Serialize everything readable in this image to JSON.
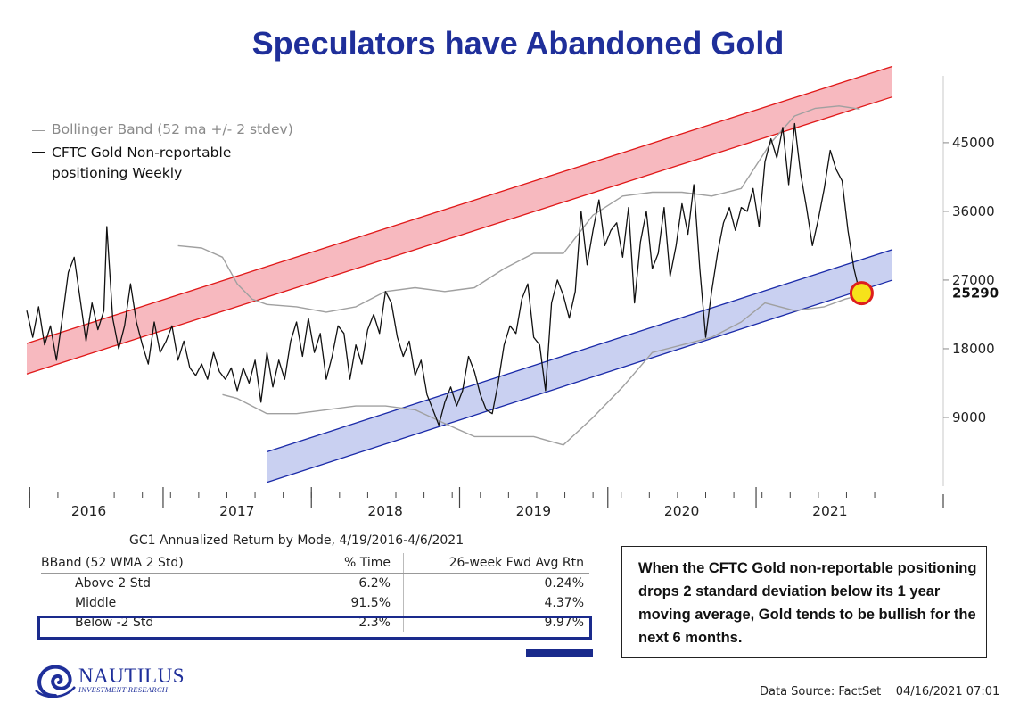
{
  "title": "Speculators have Abandoned Gold",
  "legend": {
    "band_label": "Bollinger Band (52 ma +/- 2 stdev)",
    "line_label": "CFTC Gold Non-reportable positioning Weekly"
  },
  "chart_data": {
    "type": "line",
    "title": "Speculators have Abandoned Gold",
    "x_tick_labels": [
      "2016",
      "2017",
      "2018",
      "2019",
      "2020",
      "2021"
    ],
    "y_tick_labels": [
      "45000",
      "36000",
      "27000",
      "18000",
      "9000"
    ],
    "y_ticks": [
      45000,
      36000,
      27000,
      18000,
      9000
    ],
    "ylim": [
      0,
      52000
    ],
    "xlim": [
      2015.58,
      2021.42
    ],
    "last_value_label": "25290",
    "last_value": 25290,
    "colors": {
      "line": "#111111",
      "band": "#a0a0a0",
      "upper_channel": "#e01818",
      "upper_fill": "#f7b9bf",
      "lower_channel": "#1a2aa8",
      "lower_fill": "#c9d0f1",
      "marker": "#f6e21a",
      "marker_ring": "#dd1e1e"
    },
    "series": [
      {
        "name": "CFTC Gold Non-reportable positioning Weekly",
        "points": [
          [
            2015.58,
            23000
          ],
          [
            2015.62,
            19500
          ],
          [
            2015.66,
            23500
          ],
          [
            2015.7,
            18500
          ],
          [
            2015.74,
            21000
          ],
          [
            2015.78,
            16500
          ],
          [
            2015.82,
            22000
          ],
          [
            2015.86,
            28000
          ],
          [
            2015.9,
            30000
          ],
          [
            2015.94,
            24500
          ],
          [
            2015.98,
            19000
          ],
          [
            2016.02,
            24000
          ],
          [
            2016.06,
            20500
          ],
          [
            2016.1,
            23000
          ],
          [
            2016.12,
            34000
          ],
          [
            2016.16,
            22000
          ],
          [
            2016.2,
            18000
          ],
          [
            2016.24,
            21000
          ],
          [
            2016.28,
            26500
          ],
          [
            2016.32,
            21500
          ],
          [
            2016.36,
            18500
          ],
          [
            2016.4,
            16000
          ],
          [
            2016.44,
            21500
          ],
          [
            2016.48,
            17500
          ],
          [
            2016.52,
            19000
          ],
          [
            2016.56,
            21000
          ],
          [
            2016.6,
            16500
          ],
          [
            2016.64,
            19000
          ],
          [
            2016.68,
            15500
          ],
          [
            2016.72,
            14500
          ],
          [
            2016.76,
            16000
          ],
          [
            2016.8,
            14000
          ],
          [
            2016.84,
            17500
          ],
          [
            2016.88,
            15000
          ],
          [
            2016.92,
            14000
          ],
          [
            2016.96,
            15500
          ],
          [
            2017.0,
            12500
          ],
          [
            2017.04,
            15500
          ],
          [
            2017.08,
            13500
          ],
          [
            2017.12,
            16500
          ],
          [
            2017.16,
            11000
          ],
          [
            2017.2,
            17500
          ],
          [
            2017.24,
            13000
          ],
          [
            2017.28,
            16500
          ],
          [
            2017.32,
            14000
          ],
          [
            2017.36,
            19000
          ],
          [
            2017.4,
            21500
          ],
          [
            2017.44,
            17000
          ],
          [
            2017.48,
            22000
          ],
          [
            2017.52,
            17500
          ],
          [
            2017.56,
            20000
          ],
          [
            2017.6,
            14000
          ],
          [
            2017.64,
            17000
          ],
          [
            2017.68,
            21000
          ],
          [
            2017.72,
            20000
          ],
          [
            2017.76,
            14000
          ],
          [
            2017.8,
            18500
          ],
          [
            2017.84,
            16000
          ],
          [
            2017.88,
            20500
          ],
          [
            2017.92,
            22500
          ],
          [
            2017.96,
            20000
          ],
          [
            2018.0,
            25500
          ],
          [
            2018.04,
            24000
          ],
          [
            2018.08,
            19500
          ],
          [
            2018.12,
            17000
          ],
          [
            2018.16,
            19000
          ],
          [
            2018.2,
            14500
          ],
          [
            2018.24,
            16500
          ],
          [
            2018.28,
            12000
          ],
          [
            2018.32,
            10000
          ],
          [
            2018.36,
            8000
          ],
          [
            2018.4,
            11000
          ],
          [
            2018.44,
            13000
          ],
          [
            2018.48,
            10500
          ],
          [
            2018.52,
            12500
          ],
          [
            2018.56,
            17000
          ],
          [
            2018.6,
            15000
          ],
          [
            2018.64,
            12000
          ],
          [
            2018.68,
            10000
          ],
          [
            2018.72,
            9500
          ],
          [
            2018.76,
            13500
          ],
          [
            2018.8,
            18500
          ],
          [
            2018.84,
            21000
          ],
          [
            2018.88,
            20000
          ],
          [
            2018.92,
            24500
          ],
          [
            2018.96,
            26500
          ],
          [
            2019.0,
            19500
          ],
          [
            2019.04,
            18500
          ],
          [
            2019.08,
            12500
          ],
          [
            2019.12,
            24000
          ],
          [
            2019.16,
            27000
          ],
          [
            2019.2,
            25000
          ],
          [
            2019.24,
            22000
          ],
          [
            2019.28,
            25500
          ],
          [
            2019.32,
            36000
          ],
          [
            2019.36,
            29000
          ],
          [
            2019.4,
            33500
          ],
          [
            2019.44,
            37500
          ],
          [
            2019.48,
            31500
          ],
          [
            2019.52,
            33500
          ],
          [
            2019.56,
            34500
          ],
          [
            2019.6,
            30000
          ],
          [
            2019.64,
            36500
          ],
          [
            2019.68,
            24000
          ],
          [
            2019.72,
            32000
          ],
          [
            2019.76,
            36000
          ],
          [
            2019.8,
            28500
          ],
          [
            2019.84,
            30500
          ],
          [
            2019.88,
            36500
          ],
          [
            2019.92,
            27500
          ],
          [
            2019.96,
            31500
          ],
          [
            2020.0,
            37000
          ],
          [
            2020.04,
            33000
          ],
          [
            2020.08,
            39500
          ],
          [
            2020.12,
            28500
          ],
          [
            2020.16,
            19500
          ],
          [
            2020.2,
            25500
          ],
          [
            2020.24,
            30500
          ],
          [
            2020.28,
            34500
          ],
          [
            2020.32,
            36500
          ],
          [
            2020.36,
            33500
          ],
          [
            2020.4,
            36500
          ],
          [
            2020.44,
            36000
          ],
          [
            2020.48,
            39000
          ],
          [
            2020.52,
            34000
          ],
          [
            2020.56,
            42500
          ],
          [
            2020.6,
            45500
          ],
          [
            2020.64,
            43000
          ],
          [
            2020.68,
            47000
          ],
          [
            2020.72,
            39500
          ],
          [
            2020.76,
            47500
          ],
          [
            2020.8,
            41000
          ],
          [
            2020.84,
            36500
          ],
          [
            2020.88,
            31500
          ],
          [
            2020.92,
            35000
          ],
          [
            2020.96,
            39000
          ],
          [
            2021.0,
            44000
          ],
          [
            2021.04,
            41500
          ],
          [
            2021.08,
            40000
          ],
          [
            2021.12,
            33500
          ],
          [
            2021.16,
            28500
          ],
          [
            2021.2,
            25290
          ]
        ]
      },
      {
        "name": "Bollinger Band (52 ma +/- 2 stdev)",
        "role": "upper",
        "points": [
          [
            2016.6,
            31500
          ],
          [
            2016.76,
            31200
          ],
          [
            2016.9,
            30000
          ],
          [
            2017.0,
            26500
          ],
          [
            2017.1,
            24500
          ],
          [
            2017.2,
            23800
          ],
          [
            2017.4,
            23500
          ],
          [
            2017.6,
            22800
          ],
          [
            2017.8,
            23500
          ],
          [
            2018.0,
            25500
          ],
          [
            2018.2,
            26000
          ],
          [
            2018.4,
            25500
          ],
          [
            2018.6,
            26000
          ],
          [
            2018.8,
            28500
          ],
          [
            2019.0,
            30500
          ],
          [
            2019.2,
            30500
          ],
          [
            2019.4,
            35500
          ],
          [
            2019.6,
            38000
          ],
          [
            2019.8,
            38500
          ],
          [
            2020.0,
            38500
          ],
          [
            2020.2,
            38000
          ],
          [
            2020.4,
            39000
          ],
          [
            2020.6,
            45000
          ],
          [
            2020.76,
            48500
          ],
          [
            2020.9,
            49500
          ],
          [
            2021.06,
            49800
          ],
          [
            2021.2,
            49400
          ]
        ]
      },
      {
        "name": "Bollinger Band (52 ma +/- 2 stdev)",
        "role": "lower",
        "points": [
          [
            2016.9,
            12000
          ],
          [
            2017.0,
            11500
          ],
          [
            2017.2,
            9500
          ],
          [
            2017.4,
            9500
          ],
          [
            2017.6,
            10000
          ],
          [
            2017.8,
            10500
          ],
          [
            2018.0,
            10500
          ],
          [
            2018.2,
            10000
          ],
          [
            2018.4,
            8200
          ],
          [
            2018.6,
            6500
          ],
          [
            2018.8,
            6500
          ],
          [
            2019.0,
            6500
          ],
          [
            2019.2,
            5400
          ],
          [
            2019.4,
            9000
          ],
          [
            2019.6,
            13000
          ],
          [
            2019.8,
            17500
          ],
          [
            2020.0,
            18500
          ],
          [
            2020.2,
            19500
          ],
          [
            2020.4,
            21500
          ],
          [
            2020.56,
            24000
          ],
          [
            2020.76,
            23000
          ],
          [
            2020.96,
            23500
          ],
          [
            2021.1,
            24500
          ],
          [
            2021.2,
            25000
          ]
        ]
      }
    ],
    "channels": [
      {
        "name": "upper",
        "start": [
          2015.58,
          16700
        ],
        "end": [
          2021.42,
          53000
        ],
        "width": 2000
      },
      {
        "name": "lower",
        "start": [
          2017.2,
          2500
        ],
        "end": [
          2021.42,
          29000
        ],
        "width": 2000
      }
    ]
  },
  "table": {
    "caption": "GC1 Annualized Return by Mode, 4/19/2016-4/6/2021",
    "headers": [
      "BBand (52 WMA  2 Std)",
      "% Time",
      "26-week Fwd Avg Rtn"
    ],
    "rows": [
      [
        "Above 2 Std",
        "6.2%",
        "0.24%"
      ],
      [
        "Middle",
        "91.5%",
        "4.37%"
      ],
      [
        "Below -2 Std",
        "2.3%",
        "9.97%"
      ]
    ]
  },
  "note": "When the CFTC Gold non-reportable positioning drops 2 standard deviation below its 1 year moving average, Gold tends to be bullish for the next 6 months.",
  "logo": {
    "name": "NAUTILUS",
    "tagline": "INVESTMENT RESEARCH"
  },
  "source": "Data Source: FactSet",
  "timestamp": "04/16/2021 07:01"
}
